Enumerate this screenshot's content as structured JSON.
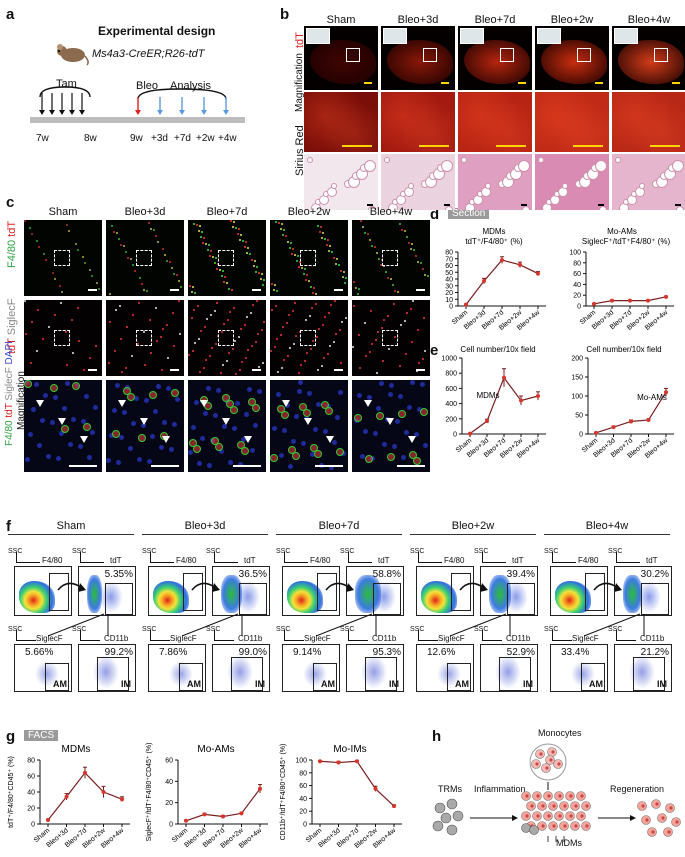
{
  "panel_letters": [
    "a",
    "b",
    "c",
    "d",
    "e",
    "f",
    "g",
    "h"
  ],
  "panel_a": {
    "title": "Experimental design",
    "mouse_line": "Ms4a3-CreER;R26-tdT",
    "tam_label": "Tam",
    "bleo_label": "Bleo",
    "analysis_label": "Analysis",
    "timepoints": [
      "7w",
      "8w",
      "9w",
      "+3d",
      "+7d",
      "+2w",
      "+4w"
    ]
  },
  "panel_b": {
    "conditions": [
      "Sham",
      "Bleo+3d",
      "Bleo+7d",
      "Bleo+2w",
      "Bleo+4w"
    ],
    "row_labels": [
      "tdT",
      "Magnification",
      "Sirius Red"
    ]
  },
  "panel_c": {
    "conditions": [
      "Sham",
      "Bleo+3d",
      "Bleo+7d",
      "Bleo+2w",
      "Bleo+4w"
    ],
    "row1_label": {
      "a": "F4/80",
      "b": "tdT"
    },
    "row2_label": {
      "a": "tdT",
      "b": "SiglecF"
    },
    "row3_label": {
      "a": "F4/80",
      "b": "tdT",
      "c": "SiglecF",
      "d": "DAPI",
      "e": "Magnification"
    }
  },
  "panel_d": {
    "header": "Section",
    "left_title": "MDMs",
    "left_sub": "tdT⁺/F4/80⁺ (%)",
    "right_title": "Mo-AMs",
    "right_sub": "SiglecF⁺/tdT⁺F4/80⁺ (%)"
  },
  "panel_e": {
    "left_title": "Cell number/10x field",
    "right_title": "Cell number/10x field",
    "left_series": "MDMs",
    "right_series": "Mo-AMs"
  },
  "panel_f": {
    "conditions": [
      "Sham",
      "Bleo+3d",
      "Bleo+7d",
      "Bleo+2w",
      "Bleo+4w"
    ],
    "axis_ssc": "SSC",
    "axis_f480": "F4/80",
    "axis_tdt": "tdT",
    "axis_siglecf": "SiglecF",
    "axis_cd11b": "CD11b",
    "gate_am": "AM",
    "gate_im": "IM",
    "tdt_pct": [
      "5.35%",
      "36.5%",
      "58.8%",
      "39.4%",
      "30.2%"
    ],
    "am_pct": [
      "5.66%",
      "7.86%",
      "9.14%",
      "12.6%",
      "33.4%"
    ],
    "im_pct": [
      "99.2%",
      "99.0%",
      "95.3%",
      "52.9%",
      "21.2%"
    ]
  },
  "panel_g": {
    "header": "FACS",
    "t1": "MDMs",
    "t2": "Mo-AMs",
    "t3": "Mo-IMs",
    "y1": "tdT⁺/F4/80⁺CD45⁺ (%)",
    "y2": "SiglecF⁺/tdT⁺F4/80⁺CD45⁺ (%)",
    "y3": "CD11b⁺/tdT⁺F4/80⁺CD45⁺ (%)"
  },
  "panel_h": {
    "monocytes": "Monocytes",
    "trms": "TRMs",
    "inflammation": "Inflammation",
    "regeneration": "Regeneration",
    "mdms": "MDMs"
  },
  "colors": {
    "line": "#7a1e1e",
    "point": "#d9342b",
    "tdt": "#c8271b",
    "f480": "#2ea043",
    "dapi": "#3a4bd0"
  },
  "chart_data": [
    {
      "type": "line",
      "panel": "d-left",
      "title": "MDMs",
      "ylabel": "tdT⁺/F4/80⁺ (%)",
      "categories": [
        "Sham",
        "Bleo+3d",
        "Bleo+7d",
        "Bleo+2w",
        "Bleo+4w"
      ],
      "values": [
        2,
        37,
        68,
        61,
        48
      ],
      "errors": [
        1,
        4,
        5,
        4,
        3
      ],
      "ylim": [
        0,
        80
      ],
      "yticks": [
        0,
        10,
        20,
        30,
        40,
        50,
        60,
        70,
        80
      ]
    },
    {
      "type": "line",
      "panel": "d-right",
      "title": "Mo-AMs",
      "ylabel": "SiglecF⁺/tdT⁺F4/80⁺ (%)",
      "categories": [
        "Sham",
        "Bleo+3d",
        "Bleo+7d",
        "Bleo+2w",
        "Bleo+4w"
      ],
      "values": [
        4,
        10,
        10,
        10,
        17
      ],
      "errors": [
        0.5,
        0.5,
        0.5,
        0.5,
        1
      ],
      "ylim": [
        0,
        100
      ],
      "yticks": [
        0,
        20,
        40,
        60,
        80,
        100
      ]
    },
    {
      "type": "line",
      "panel": "e-left",
      "title": "Cell number/10x field",
      "series_label": "MDMs",
      "categories": [
        "Sham",
        "Bleo+3d",
        "Bleo+7d",
        "Bleo+2w",
        "Bleo+4w"
      ],
      "values": [
        5,
        170,
        740,
        440,
        500
      ],
      "errors": [
        3,
        25,
        120,
        60,
        55
      ],
      "ylim": [
        0,
        1000
      ],
      "yticks": [
        0,
        200,
        400,
        600,
        800,
        1000
      ]
    },
    {
      "type": "line",
      "panel": "e-right",
      "title": "Cell number/10x field",
      "series_label": "Mo-AMs",
      "categories": [
        "Sham",
        "Bleo+3d",
        "Bleo+7d",
        "Bleo+2w",
        "Bleo+4w"
      ],
      "values": [
        3,
        18,
        33,
        37,
        110
      ],
      "errors": [
        1,
        3,
        4,
        3,
        10
      ],
      "ylim": [
        0,
        200
      ],
      "yticks": [
        0,
        50,
        100,
        150,
        200
      ]
    },
    {
      "type": "line",
      "panel": "g-1",
      "title": "MDMs",
      "ylabel": "tdT⁺/F4/80⁺CD45⁺ (%)",
      "categories": [
        "Sham",
        "Bleo+3d",
        "Bleo+7d",
        "Bleo+2w",
        "Bleo+4w"
      ],
      "values": [
        5,
        34,
        64,
        40,
        31
      ],
      "errors": [
        1,
        4,
        7,
        7,
        3
      ],
      "ylim": [
        0,
        80
      ],
      "yticks": [
        0,
        20,
        40,
        60,
        80
      ]
    },
    {
      "type": "line",
      "panel": "g-2",
      "title": "Mo-AMs",
      "ylabel": "SiglecF⁺/tdT⁺F4/80⁺CD45⁺ (%)",
      "categories": [
        "Sham",
        "Bleo+3d",
        "Bleo+7d",
        "Bleo+2w",
        "Bleo+4w"
      ],
      "values": [
        3,
        9,
        7,
        10,
        33
      ],
      "errors": [
        0.5,
        1,
        1,
        1,
        4
      ],
      "ylim": [
        0,
        60
      ],
      "yticks": [
        0,
        20,
        40,
        60
      ]
    },
    {
      "type": "line",
      "panel": "g-3",
      "title": "Mo-IMs",
      "ylabel": "CD11b⁺/tdT⁺F4/80⁺CD45⁺ (%)",
      "categories": [
        "Sham",
        "Bleo+3d",
        "Bleo+7d",
        "Bleo+2w",
        "Bleo+4w"
      ],
      "values": [
        98,
        96,
        98,
        55,
        28
      ],
      "errors": [
        1,
        2,
        1,
        4,
        2
      ],
      "ylim": [
        0,
        100
      ],
      "yticks": [
        0,
        20,
        40,
        60,
        80,
        100
      ]
    }
  ]
}
